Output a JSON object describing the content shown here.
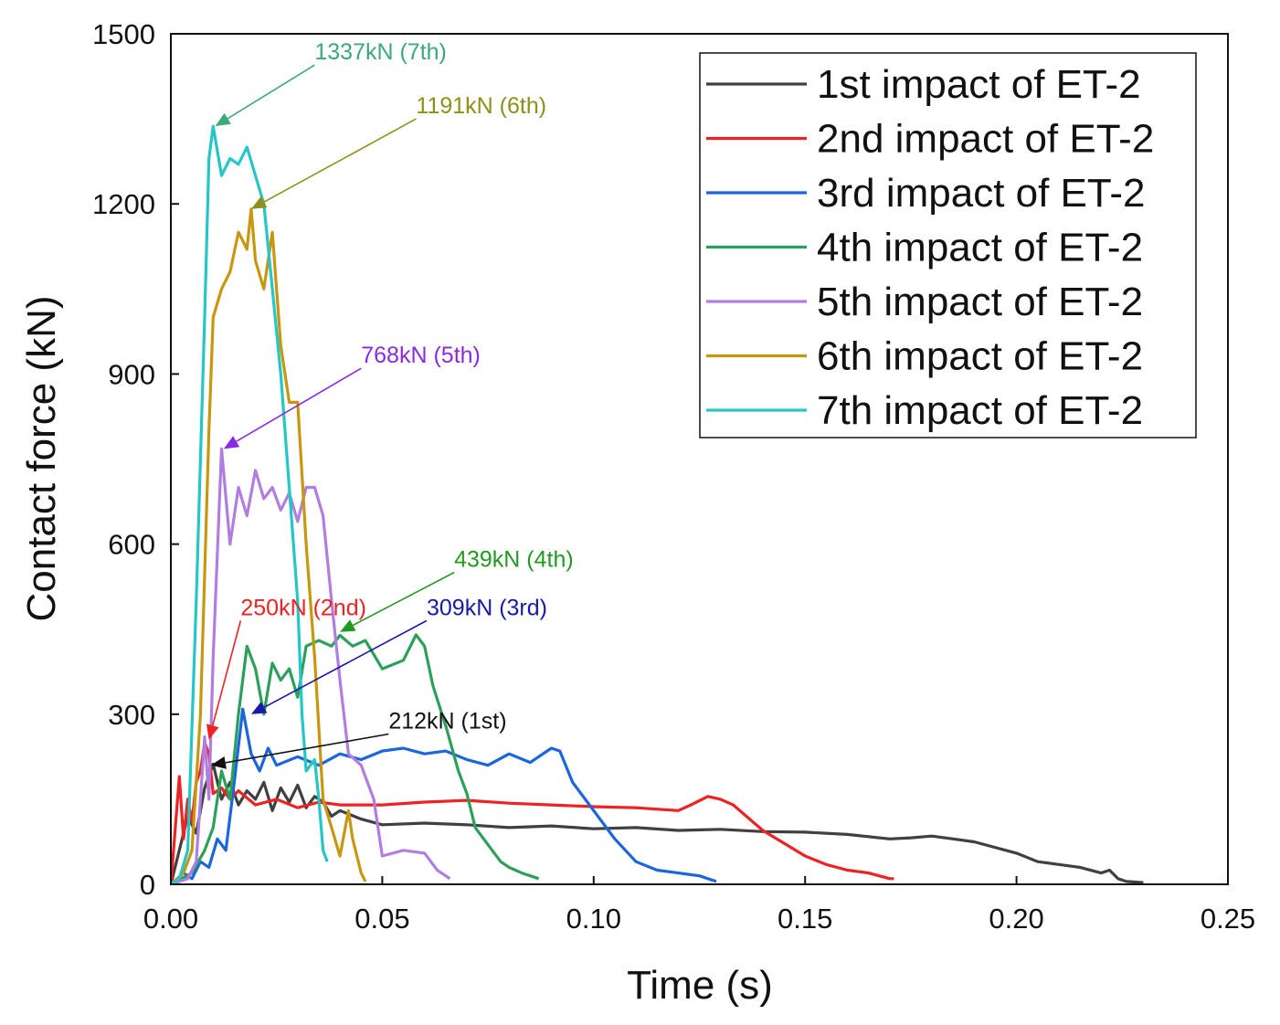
{
  "chart_data": {
    "type": "line",
    "title": "",
    "xlabel": "Time (s)",
    "ylabel": "Contact force (kN)",
    "xlim": [
      0,
      0.25
    ],
    "ylim": [
      0,
      1500
    ],
    "xticks": [
      0,
      0.05,
      0.1,
      0.15,
      0.2,
      0.25
    ],
    "xtick_labels": [
      "0.00",
      "0.05",
      "0.10",
      "0.15",
      "0.20",
      "0.25"
    ],
    "yticks": [
      0,
      300,
      600,
      900,
      1200,
      1500
    ],
    "ytick_labels": [
      "0",
      "300",
      "600",
      "900",
      "1200",
      "1500"
    ],
    "grid": false,
    "legend_position": "top-right",
    "series": [
      {
        "name": "1st impact of ET-2",
        "color": "#404040",
        "x": [
          0,
          0.004,
          0.006,
          0.008,
          0.01,
          0.012,
          0.014,
          0.016,
          0.018,
          0.02,
          0.022,
          0.024,
          0.026,
          0.028,
          0.03,
          0.032,
          0.034,
          0.036,
          0.038,
          0.04,
          0.045,
          0.05,
          0.06,
          0.07,
          0.08,
          0.09,
          0.1,
          0.11,
          0.12,
          0.13,
          0.14,
          0.15,
          0.16,
          0.17,
          0.175,
          0.18,
          0.185,
          0.19,
          0.2,
          0.205,
          0.21,
          0.215,
          0.22,
          0.222,
          0.224,
          0.226,
          0.23
        ],
        "y": [
          0,
          120,
          90,
          170,
          212,
          150,
          180,
          140,
          165,
          150,
          180,
          130,
          170,
          145,
          175,
          135,
          155,
          145,
          120,
          130,
          115,
          105,
          108,
          105,
          100,
          103,
          98,
          100,
          95,
          97,
          93,
          92,
          88,
          80,
          82,
          85,
          80,
          75,
          55,
          40,
          35,
          30,
          20,
          25,
          10,
          5,
          3
        ]
      },
      {
        "name": "2nd impact of ET-2",
        "color": "#ee2222",
        "x": [
          0,
          0.002,
          0.003,
          0.004,
          0.005,
          0.006,
          0.007,
          0.008,
          0.009,
          0.01,
          0.012,
          0.014,
          0.016,
          0.02,
          0.025,
          0.03,
          0.035,
          0.04,
          0.05,
          0.06,
          0.07,
          0.08,
          0.09,
          0.1,
          0.11,
          0.12,
          0.123,
          0.127,
          0.13,
          0.133,
          0.14,
          0.15,
          0.155,
          0.16,
          0.165,
          0.17,
          0.171
        ],
        "y": [
          0,
          190,
          80,
          150,
          110,
          180,
          200,
          250,
          230,
          160,
          170,
          150,
          165,
          140,
          150,
          135,
          145,
          140,
          140,
          145,
          148,
          143,
          140,
          137,
          135,
          130,
          140,
          155,
          150,
          140,
          95,
          50,
          35,
          25,
          20,
          10,
          10
        ]
      },
      {
        "name": "3rd impact of ET-2",
        "color": "#1a66dd",
        "x": [
          0,
          0.003,
          0.005,
          0.007,
          0.009,
          0.011,
          0.013,
          0.015,
          0.017,
          0.019,
          0.021,
          0.023,
          0.025,
          0.03,
          0.035,
          0.04,
          0.045,
          0.05,
          0.055,
          0.06,
          0.065,
          0.07,
          0.075,
          0.08,
          0.085,
          0.09,
          0.092,
          0.095,
          0.1,
          0.105,
          0.11,
          0.115,
          0.12,
          0.125,
          0.129
        ],
        "y": [
          0,
          20,
          10,
          40,
          30,
          80,
          60,
          180,
          309,
          230,
          200,
          240,
          210,
          225,
          210,
          230,
          220,
          235,
          240,
          230,
          235,
          220,
          210,
          230,
          215,
          240,
          235,
          180,
          130,
          80,
          40,
          25,
          20,
          15,
          5
        ]
      },
      {
        "name": "4th impact of ET-2",
        "color": "#2ca05a",
        "x": [
          0,
          0.005,
          0.008,
          0.01,
          0.012,
          0.014,
          0.016,
          0.018,
          0.02,
          0.022,
          0.024,
          0.026,
          0.028,
          0.03,
          0.032,
          0.035,
          0.038,
          0.04,
          0.043,
          0.046,
          0.05,
          0.055,
          0.058,
          0.06,
          0.062,
          0.065,
          0.068,
          0.07,
          0.072,
          0.075,
          0.078,
          0.08,
          0.083,
          0.085,
          0.087
        ],
        "y": [
          0,
          20,
          60,
          100,
          200,
          150,
          300,
          420,
          380,
          300,
          390,
          360,
          380,
          330,
          420,
          430,
          420,
          439,
          420,
          430,
          380,
          395,
          440,
          420,
          350,
          280,
          200,
          160,
          100,
          70,
          40,
          30,
          20,
          15,
          10
        ]
      },
      {
        "name": "5th impact of ET-2",
        "color": "#b07ee0",
        "x": [
          0,
          0.004,
          0.006,
          0.008,
          0.009,
          0.01,
          0.012,
          0.014,
          0.016,
          0.018,
          0.02,
          0.022,
          0.024,
          0.026,
          0.028,
          0.03,
          0.032,
          0.034,
          0.036,
          0.038,
          0.04,
          0.042,
          0.045,
          0.048,
          0.05,
          0.055,
          0.06,
          0.063,
          0.066
        ],
        "y": [
          0,
          10,
          40,
          260,
          150,
          400,
          768,
          600,
          700,
          650,
          730,
          680,
          700,
          660,
          690,
          640,
          700,
          700,
          650,
          500,
          360,
          230,
          210,
          150,
          50,
          60,
          55,
          25,
          10
        ]
      },
      {
        "name": "6th impact of ET-2",
        "color": "#c8960f",
        "x": [
          0,
          0.003,
          0.005,
          0.007,
          0.009,
          0.01,
          0.012,
          0.014,
          0.016,
          0.018,
          0.019,
          0.02,
          0.022,
          0.024,
          0.026,
          0.028,
          0.03,
          0.032,
          0.034,
          0.036,
          0.038,
          0.04,
          0.042,
          0.043,
          0.045,
          0.046
        ],
        "y": [
          0,
          20,
          60,
          300,
          800,
          1000,
          1050,
          1080,
          1150,
          1120,
          1191,
          1100,
          1050,
          1150,
          950,
          850,
          850,
          600,
          400,
          150,
          100,
          50,
          130,
          80,
          20,
          5
        ]
      },
      {
        "name": "7th impact of ET-2",
        "color": "#26c6c6",
        "x": [
          0,
          0.002,
          0.004,
          0.006,
          0.008,
          0.009,
          0.01,
          0.012,
          0.014,
          0.016,
          0.018,
          0.02,
          0.022,
          0.024,
          0.026,
          0.028,
          0.03,
          0.031,
          0.032,
          0.034,
          0.035,
          0.036,
          0.037
        ],
        "y": [
          0,
          10,
          60,
          500,
          1000,
          1280,
          1337,
          1250,
          1280,
          1270,
          1300,
          1250,
          1200,
          1050,
          900,
          700,
          500,
          300,
          200,
          220,
          150,
          60,
          40
        ]
      }
    ],
    "annotations": [
      {
        "text": "1337kN (7th)",
        "color": "#3aaa78",
        "tip_x": 0.0105,
        "tip_y": 1337,
        "text_x": 0.034,
        "text_y": 1445
      },
      {
        "text": "1191kN (6th)",
        "color": "#8f8f1a",
        "tip_x": 0.019,
        "tip_y": 1191,
        "text_x": 0.058,
        "text_y": 1350
      },
      {
        "text": "768kN (5th)",
        "color": "#8a2be2",
        "tip_x": 0.0125,
        "tip_y": 768,
        "text_x": 0.045,
        "text_y": 910
      },
      {
        "text": "439kN (4th)",
        "color": "#229922",
        "tip_x": 0.04,
        "tip_y": 445,
        "text_x": 0.067,
        "text_y": 550
      },
      {
        "text": "250kN (2nd)",
        "color": "#ee2222",
        "tip_x": 0.009,
        "tip_y": 255,
        "text_x": 0.0165,
        "text_y": 465
      },
      {
        "text": "309kN (3rd)",
        "color": "#1a1aaa",
        "tip_x": 0.019,
        "tip_y": 300,
        "text_x": 0.0605,
        "text_y": 465
      },
      {
        "text": "212kN (1st)",
        "color": "#111111",
        "tip_x": 0.0095,
        "tip_y": 210,
        "text_x": 0.0515,
        "text_y": 265
      }
    ]
  }
}
